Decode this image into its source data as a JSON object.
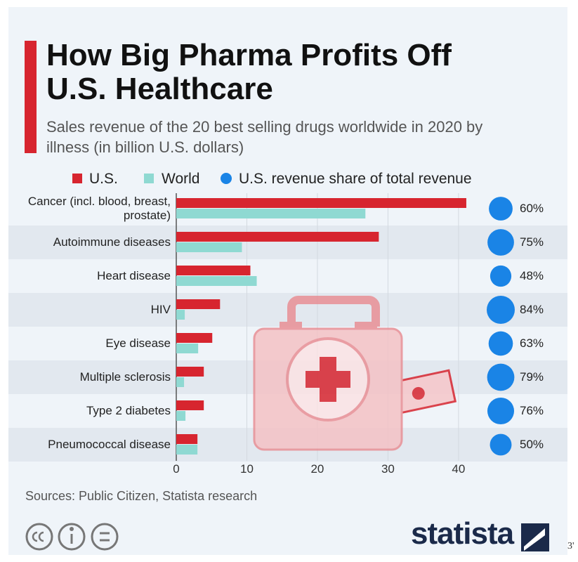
{
  "chart_data": {
    "type": "bar",
    "orientation": "horizontal",
    "title": "How Big Pharma Profits Off U.S. Healthcare",
    "subtitle": "Sales revenue of the 20 best selling drugs worldwide in 2020 by illness (in billion U.S. dollars)",
    "categories": [
      "Cancer (incl. blood, breast, prostate)",
      "Autoimmune diseases",
      "Heart disease",
      "HIV",
      "Eye disease",
      "Multiple sclerosis",
      "Type 2 diabetes",
      "Pneumococcal disease"
    ],
    "series": [
      {
        "name": "U.S.",
        "color": "#d7252f",
        "values": [
          41.1,
          28.7,
          10.5,
          6.2,
          5.1,
          3.9,
          3.9,
          3.0
        ]
      },
      {
        "name": "World",
        "color": "#8fd9d2",
        "values": [
          26.8,
          9.3,
          11.4,
          1.2,
          3.1,
          1.1,
          1.3,
          3.0
        ]
      }
    ],
    "share": {
      "name": "U.S. revenue share of total revenue",
      "color": "#1a84e6",
      "values": [
        60,
        75,
        48,
        84,
        63,
        79,
        76,
        50
      ],
      "value_labels": [
        "60%",
        "75%",
        "48%",
        "84%",
        "63%",
        "79%",
        "76%",
        "50%"
      ]
    },
    "xlim": [
      0,
      42
    ],
    "xticks": [
      0,
      10,
      20,
      30,
      40
    ],
    "grid": true,
    "source": "Sources: Public Citizen, Statista research",
    "brand": "statista",
    "corner_mark": "3'"
  }
}
